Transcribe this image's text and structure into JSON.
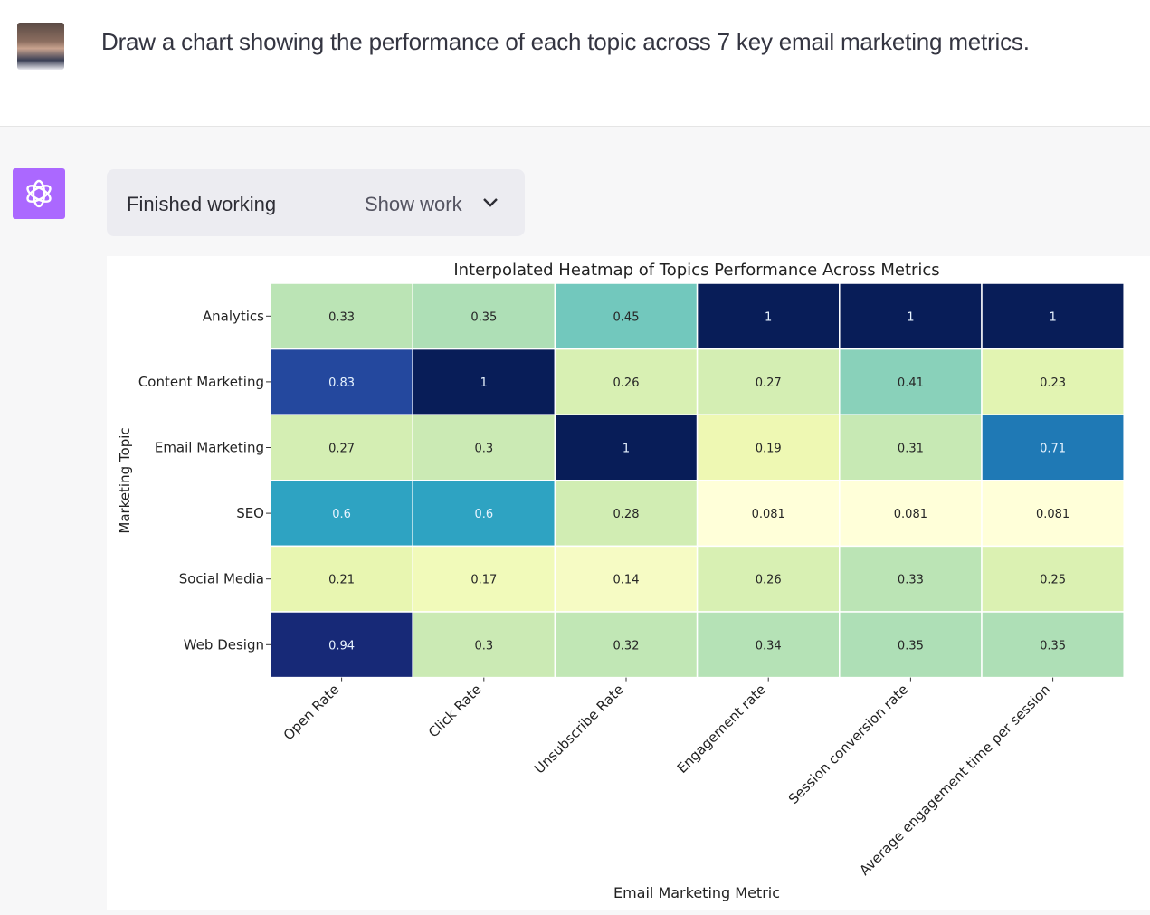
{
  "user": {
    "prompt": "Draw a chart showing the performance of each topic across 7 key email marketing metrics."
  },
  "assistant": {
    "status": "Finished working",
    "show_work_label": "Show work",
    "accent": "#ab68ff"
  },
  "chart_data": {
    "type": "heatmap",
    "title": "Interpolated Heatmap of Topics Performance Across Metrics",
    "xlabel": "Email Marketing Metric",
    "ylabel": "Marketing Topic",
    "colormap": "YlGnBu",
    "x_categories": [
      "Open Rate",
      "Click Rate",
      "Unsubscribe Rate",
      "Engagement rate",
      "Session conversion rate",
      "Average engagement time per session"
    ],
    "y_categories": [
      "Analytics",
      "Content Marketing",
      "Email Marketing",
      "SEO",
      "Social Media",
      "Web Design"
    ],
    "values": [
      [
        0.33,
        0.35,
        0.45,
        1,
        1,
        1
      ],
      [
        0.83,
        1,
        0.26,
        0.27,
        0.41,
        0.23
      ],
      [
        0.27,
        0.3,
        1,
        0.19,
        0.31,
        0.71
      ],
      [
        0.6,
        0.6,
        0.28,
        0.081,
        0.081,
        0.081
      ],
      [
        0.21,
        0.17,
        0.14,
        0.26,
        0.33,
        0.25
      ],
      [
        0.94,
        0.3,
        0.32,
        0.34,
        0.35,
        0.35
      ]
    ],
    "annotations": [
      [
        "0.33",
        "0.35",
        "0.45",
        "1",
        "1",
        "1"
      ],
      [
        "0.83",
        "1",
        "0.26",
        "0.27",
        "0.41",
        "0.23"
      ],
      [
        "0.27",
        "0.3",
        "1",
        "0.19",
        "0.31",
        "0.71"
      ],
      [
        "0.6",
        "0.6",
        "0.28",
        "0.081",
        "0.081",
        "0.081"
      ],
      [
        "0.21",
        "0.17",
        "0.14",
        "0.26",
        "0.33",
        "0.25"
      ],
      [
        "0.94",
        "0.3",
        "0.32",
        "0.34",
        "0.35",
        "0.35"
      ]
    ]
  }
}
